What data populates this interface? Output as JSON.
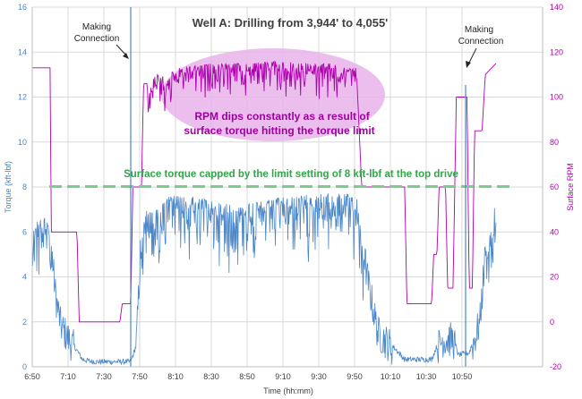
{
  "chart_data": {
    "type": "line",
    "title": "Well A: Drilling  from 3,944' to 4,055'",
    "xlabel": "Time (hh:mm)",
    "ylabel_left": "Torque (kft-lbf)",
    "ylabel_right": "Surface RPM",
    "x_ticks": [
      "6:50",
      "7:10",
      "7:30",
      "7:50",
      "8:10",
      "8:30",
      "8:50",
      "9:10",
      "9:30",
      "9:50",
      "10:10",
      "10:30",
      "10:50"
    ],
    "ylim_left": [
      0,
      16
    ],
    "yticks_left": [
      "0",
      "2",
      "4",
      "6",
      "8",
      "10",
      "12",
      "14",
      "16"
    ],
    "ylim_right": [
      -20,
      140
    ],
    "yticks_right": [
      "-20",
      "0",
      "20",
      "40",
      "60",
      "80",
      "100",
      "120",
      "140"
    ],
    "grid": true,
    "colors": {
      "torque": "#4a86c8",
      "rpm": "#b000b0",
      "limit_line": "#7dcc8c",
      "grid": "#d9d9d9",
      "ellipse_fill": "#e7b3ea",
      "title": "#404040",
      "green_text": "#2fa846",
      "magenta_text": "#a000a0"
    },
    "series": [
      {
        "name": "Torque",
        "axis": "left",
        "points": [
          [
            6.833,
            6.5
          ],
          [
            6.95,
            6.8
          ],
          [
            7.0,
            6.0
          ],
          [
            7.05,
            3.2
          ],
          [
            7.1,
            1.8
          ],
          [
            7.15,
            1.4
          ],
          [
            7.25,
            0.6
          ],
          [
            7.3,
            0.2
          ],
          [
            7.4,
            0.1
          ],
          [
            7.5,
            0.1
          ],
          [
            7.65,
            0.1
          ],
          [
            7.75,
            0.1
          ],
          [
            7.8,
            0.8
          ],
          [
            7.85,
            6.0
          ],
          [
            7.9,
            7.0
          ],
          [
            8.0,
            7.0
          ],
          [
            8.1,
            7.6
          ],
          [
            8.3,
            7.6
          ],
          [
            8.5,
            7.4
          ],
          [
            8.7,
            7.2
          ],
          [
            8.9,
            7.3
          ],
          [
            9.1,
            7.5
          ],
          [
            9.3,
            7.6
          ],
          [
            9.5,
            7.7
          ],
          [
            9.7,
            7.7
          ],
          [
            9.85,
            7.7
          ],
          [
            9.95,
            4.0
          ],
          [
            10.05,
            1.5
          ],
          [
            10.15,
            1.0
          ],
          [
            10.3,
            0.2
          ],
          [
            10.45,
            0.2
          ],
          [
            10.55,
            0.2
          ],
          [
            10.6,
            0.8
          ],
          [
            10.65,
            1.2
          ],
          [
            10.75,
            1.2
          ],
          [
            10.8,
            0.4
          ],
          [
            10.9,
            0.5
          ],
          [
            10.95,
            1.2
          ],
          [
            11.0,
            2.0
          ],
          [
            11.05,
            5.0
          ],
          [
            11.1,
            6.0
          ],
          [
            11.15,
            7.5
          ]
        ]
      },
      {
        "name": "Surface RPM",
        "axis": "right",
        "points": [
          [
            6.833,
            113
          ],
          [
            7.0,
            113
          ],
          [
            7.01,
            40
          ],
          [
            7.25,
            40
          ],
          [
            7.27,
            0
          ],
          [
            7.65,
            0
          ],
          [
            7.67,
            8
          ],
          [
            7.75,
            8
          ],
          [
            7.77,
            60
          ],
          [
            7.85,
            60
          ],
          [
            7.87,
            106
          ],
          [
            7.95,
            106
          ],
          [
            7.97,
            110
          ],
          [
            8.1,
            110
          ],
          [
            8.2,
            113
          ],
          [
            8.5,
            115
          ],
          [
            8.8,
            115
          ],
          [
            9.1,
            116
          ],
          [
            9.4,
            115
          ],
          [
            9.6,
            115
          ],
          [
            9.75,
            113
          ],
          [
            9.85,
            113
          ],
          [
            9.9,
            60
          ],
          [
            10.3,
            60
          ],
          [
            10.32,
            8
          ],
          [
            10.55,
            8
          ],
          [
            10.57,
            30
          ],
          [
            10.6,
            30
          ],
          [
            10.62,
            60
          ],
          [
            10.68,
            60
          ],
          [
            10.7,
            15
          ],
          [
            10.75,
            15
          ],
          [
            10.78,
            100
          ],
          [
            10.88,
            100
          ],
          [
            10.9,
            15
          ],
          [
            10.93,
            15
          ],
          [
            10.95,
            85
          ],
          [
            11.02,
            85
          ],
          [
            11.05,
            110
          ],
          [
            11.15,
            115
          ]
        ]
      }
    ],
    "reference_line": {
      "axis": "left",
      "value": 8
    },
    "connection_lines_x": [
      7.567,
      10.517
    ],
    "annotations": [
      {
        "text": "Making",
        "text2": "Connection"
      },
      {
        "text": "Making",
        "text2": "Connection"
      },
      {
        "text": "RPM dips constantly as a  result of",
        "text2": "surface torque hitting the torque limit"
      },
      {
        "text": "Surface torque capped by the limit setting of 8 kft-lbf at the top drive"
      }
    ]
  }
}
